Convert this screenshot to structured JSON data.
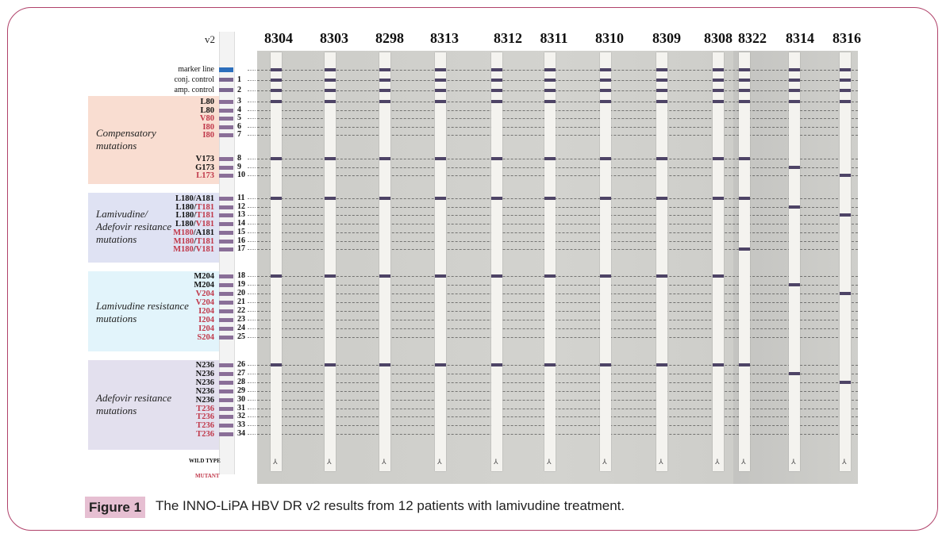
{
  "figure": {
    "strip_version": "v2",
    "controls": [
      "marker line",
      "conj. control",
      "amp. control"
    ],
    "groups": [
      {
        "title": "Compensatory\nmutations",
        "color": "#f9ddd1",
        "probes": [
          {
            "num": "3",
            "pos": "L80",
            "mut": false
          },
          {
            "num": "4",
            "pos": "L80",
            "mut": false
          },
          {
            "num": "5",
            "pos": "V80",
            "mut": true
          },
          {
            "num": "6",
            "pos": "I80",
            "mut": true
          },
          {
            "num": "7",
            "pos": "I80",
            "mut": true
          },
          {
            "num": "8",
            "pos": "V173",
            "mut": false
          },
          {
            "num": "9",
            "pos": "G173",
            "mut": false
          },
          {
            "num": "10",
            "pos": "L173",
            "mut": true
          }
        ]
      },
      {
        "title": "Lamivudine/\nAdefovir resitance\nmutations",
        "color": "#dfe2f3",
        "probes": [
          {
            "num": "11",
            "a": "L180",
            "am": false,
            "b": "A181",
            "bm": false
          },
          {
            "num": "12",
            "a": "L180",
            "am": false,
            "b": "T181",
            "bm": true
          },
          {
            "num": "13",
            "a": "L180",
            "am": false,
            "b": "T181",
            "bm": true
          },
          {
            "num": "14",
            "a": "L180",
            "am": false,
            "b": "V181",
            "bm": true
          },
          {
            "num": "15",
            "a": "M180",
            "am": true,
            "b": "A181",
            "bm": false
          },
          {
            "num": "16",
            "a": "M180",
            "am": true,
            "b": "T181",
            "bm": true
          },
          {
            "num": "17",
            "a": "M180",
            "am": true,
            "b": "V181",
            "bm": true
          }
        ]
      },
      {
        "title": "Lamivudine resistance\nmutations",
        "color": "#e2f4fb",
        "probes": [
          {
            "num": "18",
            "pos": "M204",
            "mut": false
          },
          {
            "num": "19",
            "pos": "M204",
            "mut": false
          },
          {
            "num": "20",
            "pos": "V204",
            "mut": true
          },
          {
            "num": "21",
            "pos": "V204",
            "mut": true
          },
          {
            "num": "22",
            "pos": "I204",
            "mut": true
          },
          {
            "num": "23",
            "pos": "I204",
            "mut": true
          },
          {
            "num": "24",
            "pos": "I204",
            "mut": true
          },
          {
            "num": "25",
            "pos": "S204",
            "mut": true
          }
        ]
      },
      {
        "title": "Adefovir resitance\nmutations",
        "color": "#e3e0ee",
        "probes": [
          {
            "num": "26",
            "pos": "N236",
            "mut": false
          },
          {
            "num": "27",
            "pos": "N236",
            "mut": false
          },
          {
            "num": "28",
            "pos": "N236",
            "mut": false
          },
          {
            "num": "29",
            "pos": "N236",
            "mut": false
          },
          {
            "num": "30",
            "pos": "N236",
            "mut": false
          },
          {
            "num": "31",
            "pos": "T236",
            "mut": true
          },
          {
            "num": "32",
            "pos": "T236",
            "mut": true
          },
          {
            "num": "33",
            "pos": "T236",
            "mut": true
          },
          {
            "num": "34",
            "pos": "T236",
            "mut": true
          }
        ]
      }
    ],
    "key_wild": "WILD TYPE",
    "key_mutant": "MUTANT",
    "patients": [
      "8304",
      "8303",
      "8298",
      "8313",
      "8312",
      "8311",
      "8310",
      "8309",
      "8308",
      "8322",
      "8314",
      "8316"
    ],
    "patient_bands": [
      [
        0,
        1,
        2,
        3,
        8,
        11,
        18,
        26
      ],
      [
        0,
        1,
        2,
        3,
        8,
        11,
        18,
        26
      ],
      [
        0,
        1,
        2,
        3,
        8,
        11,
        18,
        26
      ],
      [
        0,
        1,
        2,
        3,
        8,
        11,
        18,
        26
      ],
      [
        0,
        1,
        2,
        3,
        8,
        11,
        18,
        26
      ],
      [
        0,
        1,
        2,
        3,
        8,
        11,
        18,
        26
      ],
      [
        0,
        1,
        2,
        3,
        8,
        11,
        18,
        26
      ],
      [
        0,
        1,
        2,
        3,
        8,
        11,
        18,
        26
      ],
      [
        0,
        1,
        2,
        3,
        8,
        11,
        18,
        26
      ],
      [
        0,
        1,
        2,
        3,
        8,
        11,
        17,
        26
      ],
      [
        0,
        1,
        2,
        3,
        9,
        12,
        19,
        27
      ],
      [
        0,
        1,
        2,
        3,
        10,
        13,
        20,
        28
      ]
    ],
    "strip_mark": "⅄",
    "caption_tag": "Figure 1",
    "caption": "The INNO-LiPA HBV DR v2 results from 12 patients with lamivudine treatment."
  }
}
